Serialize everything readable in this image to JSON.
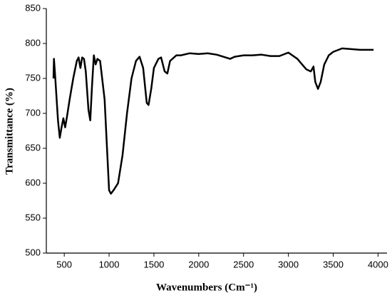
{
  "chart_data": {
    "type": "line",
    "x_label": "Wavenumbers (Cm⁻¹)",
    "y_label": "Transmittance (%)",
    "x": [
      380,
      385,
      395,
      410,
      430,
      450,
      470,
      490,
      510,
      530,
      560,
      600,
      640,
      660,
      680,
      700,
      720,
      740,
      770,
      790,
      810,
      830,
      850,
      870,
      900,
      950,
      1000,
      1020,
      1050,
      1100,
      1150,
      1200,
      1250,
      1300,
      1340,
      1380,
      1420,
      1440,
      1470,
      1500,
      1550,
      1580,
      1620,
      1650,
      1680,
      1750,
      1800,
      1900,
      2000,
      2100,
      2200,
      2300,
      2350,
      2400,
      2500,
      2600,
      2700,
      2800,
      2900,
      3000,
      3100,
      3200,
      3250,
      3280,
      3300,
      3330,
      3360,
      3400,
      3450,
      3500,
      3600,
      3700,
      3800,
      3900,
      3950
    ],
    "values": [
      750,
      778,
      760,
      730,
      690,
      665,
      680,
      693,
      680,
      695,
      720,
      750,
      775,
      780,
      765,
      780,
      778,
      760,
      705,
      690,
      740,
      783,
      770,
      778,
      775,
      720,
      590,
      585,
      590,
      600,
      640,
      700,
      750,
      775,
      781,
      765,
      715,
      712,
      735,
      765,
      778,
      780,
      760,
      757,
      775,
      783,
      783,
      786,
      785,
      786,
      784,
      780,
      778,
      781,
      783,
      783,
      784,
      782,
      782,
      787,
      778,
      763,
      760,
      767,
      745,
      735,
      745,
      770,
      783,
      788,
      793,
      792,
      791,
      791,
      791
    ],
    "color": "#000000",
    "xlim": [
      300,
      4100
    ],
    "ylim": [
      500,
      850
    ],
    "xticks": [
      500,
      1000,
      1500,
      2000,
      2500,
      3000,
      3500,
      4000
    ],
    "yticks": [
      500,
      550,
      600,
      650,
      700,
      750,
      800,
      850
    ],
    "grid": false
  }
}
